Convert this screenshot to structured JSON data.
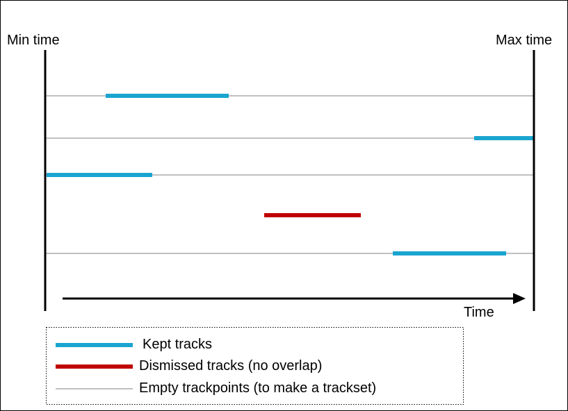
{
  "labels": {
    "min_time": "Min time",
    "max_time": "Max time",
    "axis": "Time"
  },
  "colors": {
    "kept": "#1aa5d0",
    "dismissed": "#c00000",
    "empty": "#c0c0c0",
    "axis": "#000000"
  },
  "legend": {
    "kept": "Kept tracks",
    "dismissed": "Dismissed tracks (no overlap)",
    "empty": "Empty trackpoints (to make a trackset)"
  }
}
